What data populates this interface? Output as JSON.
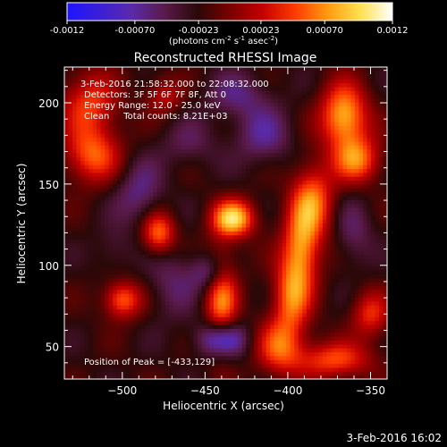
{
  "colorbar": {
    "ticks": [
      "-0.0012",
      "-0.00070",
      "-0.00023",
      "0.00023",
      "0.00070",
      "0.0012"
    ],
    "tick_values": [
      -0.0012,
      -0.0007,
      -0.00023,
      0.00023,
      0.0007,
      0.0012
    ],
    "range": [
      -0.0012,
      0.0012
    ],
    "units_main": "(photons cm",
    "units_sup1": "-2",
    "units_mid": " s",
    "units_sup2": "-1",
    "units_mid2": " asec",
    "units_sup3": "-2",
    "units_end": ")",
    "colors": [
      "#1e14ff",
      "#3b1fd8",
      "#5a2aa8",
      "#5a1a4a",
      "#2a0808",
      "#7a0000",
      "#c40000",
      "#ff3a00",
      "#ff9a10",
      "#ffe050",
      "#ffffff"
    ]
  },
  "chart_data": {
    "type": "heatmap",
    "title": "Reconstructed RHESSI Image",
    "xlabel": "Heliocentric X (arcsec)",
    "ylabel": "Heliocentric Y (arcsec)",
    "xlim": [
      -535,
      -340
    ],
    "ylim": [
      30,
      222
    ],
    "xticks": [
      -500,
      -450,
      -400,
      -350
    ],
    "yticks": [
      50,
      100,
      150,
      200
    ],
    "xtick_labels": [
      "−500",
      "−450",
      "−400",
      "−350"
    ],
    "ytick_labels": [
      "50",
      "100",
      "150",
      "200"
    ],
    "annotations": [
      "3-Feb-2016 21:58:32.000 to 22:08:32.000",
      "Detectors: 3F 5F 6F 7F 8F, Att 0",
      "Energy Range: 12.0 - 25.0 keV",
      "Clean     Total counts: 8.21E+03"
    ],
    "peak_label": "Position of Peak = [-433,129]",
    "peak": [
      -433,
      129
    ],
    "sources": [
      {
        "x": -433,
        "y": 129,
        "amp": 0.00115,
        "sx": 9,
        "sy": 8
      },
      {
        "x": -366,
        "y": 192,
        "amp": 0.00105,
        "sx": 10,
        "sy": 14
      },
      {
        "x": -358,
        "y": 165,
        "amp": 0.0008,
        "sx": 10,
        "sy": 10
      },
      {
        "x": -385,
        "y": 140,
        "amp": 0.0008,
        "sx": 9,
        "sy": 16
      },
      {
        "x": -392,
        "y": 110,
        "amp": 0.00085,
        "sx": 8,
        "sy": 18
      },
      {
        "x": -398,
        "y": 80,
        "amp": 0.00075,
        "sx": 8,
        "sy": 16
      },
      {
        "x": -405,
        "y": 50,
        "amp": 0.0007,
        "sx": 10,
        "sy": 12
      },
      {
        "x": -372,
        "y": 42,
        "amp": 0.0007,
        "sx": 16,
        "sy": 8
      },
      {
        "x": -350,
        "y": 70,
        "amp": 0.0006,
        "sx": 8,
        "sy": 10
      },
      {
        "x": -440,
        "y": 78,
        "amp": 0.00085,
        "sx": 7,
        "sy": 22
      },
      {
        "x": -478,
        "y": 120,
        "amp": 0.00085,
        "sx": 7,
        "sy": 9
      },
      {
        "x": -500,
        "y": 79,
        "amp": 0.0008,
        "sx": 8,
        "sy": 8
      },
      {
        "x": -518,
        "y": 168,
        "amp": 0.00075,
        "sx": 12,
        "sy": 12
      },
      {
        "x": -520,
        "y": 200,
        "amp": 0.00065,
        "sx": 12,
        "sy": 14
      },
      {
        "x": -475,
        "y": 205,
        "amp": 0.00045,
        "sx": 8,
        "sy": 8
      },
      {
        "x": -460,
        "y": 175,
        "amp": -0.00025,
        "sx": 12,
        "sy": 10
      },
      {
        "x": -447,
        "y": 96,
        "amp": -0.0005,
        "sx": 8,
        "sy": 8
      },
      {
        "x": -440,
        "y": 55,
        "amp": -0.0009,
        "sx": 10,
        "sy": 8
      },
      {
        "x": -490,
        "y": 145,
        "amp": -0.0004,
        "sx": 10,
        "sy": 14
      },
      {
        "x": -470,
        "y": 90,
        "amp": -0.0003,
        "sx": 10,
        "sy": 16
      },
      {
        "x": -415,
        "y": 180,
        "amp": -0.0004,
        "sx": 12,
        "sy": 12
      },
      {
        "x": -505,
        "y": 110,
        "amp": -0.0002,
        "sx": 8,
        "sy": 10
      },
      {
        "x": -430,
        "y": 205,
        "amp": -0.00035,
        "sx": 14,
        "sy": 10
      },
      {
        "x": -360,
        "y": 120,
        "amp": -0.0003,
        "sx": 8,
        "sy": 14
      }
    ]
  },
  "timestamp": "3-Feb-2016 16:02"
}
